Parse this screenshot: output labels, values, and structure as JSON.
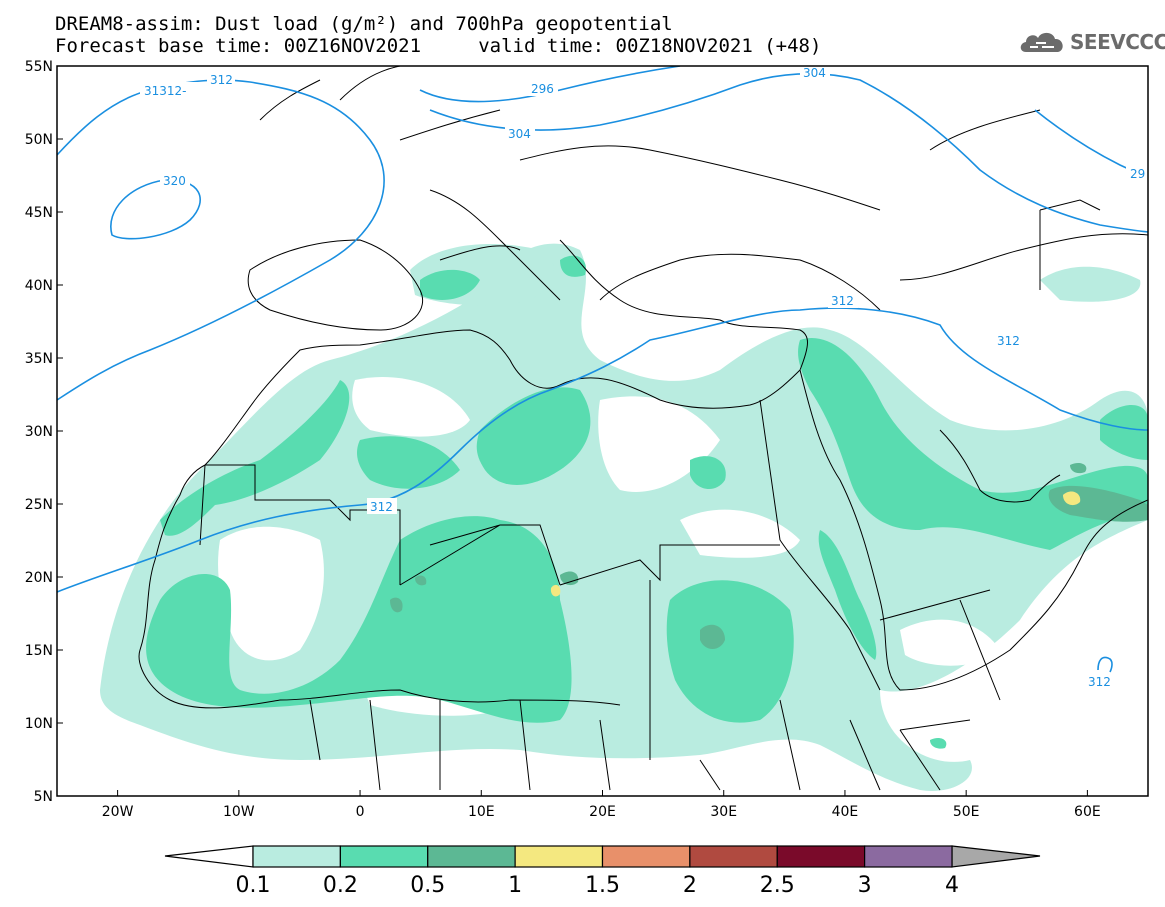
{
  "header": {
    "title_line1": "DREAM8-assim: Dust load (g/m²) and 700hPa geopotential",
    "title_line2": "Forecast base time: 00Z16NOV2021     valid time: 00Z18NOV2021 (+48)"
  },
  "logo": {
    "text": "SEEVCCC",
    "icon": "cloud-icon",
    "color": "#6b6b6b"
  },
  "map": {
    "lon_range": [
      -25,
      65
    ],
    "lat_range": [
      5,
      55
    ],
    "y_ticks": [
      "55N",
      "50N",
      "45N",
      "40N",
      "35N",
      "30N",
      "25N",
      "20N",
      "15N",
      "10N",
      "5N"
    ],
    "x_ticks": [
      "20W",
      "10W",
      "0",
      "10E",
      "20E",
      "30E",
      "40E",
      "50E",
      "60E"
    ],
    "contour_color": "#1a8fe0",
    "contour_labels": [
      "31312-",
      "312",
      "296",
      "304",
      "304",
      "29",
      "320",
      "312",
      "312",
      "312",
      "312"
    ]
  },
  "colorbar": {
    "labels": [
      "0.1",
      "0.2",
      "0.5",
      "1",
      "1.5",
      "2",
      "2.5",
      "3",
      "4"
    ],
    "colors": [
      "#b9ece0",
      "#59dcb0",
      "#5cb894",
      "#f4e880",
      "#e8906a",
      "#b04a40",
      "#7a0a2a",
      "#8b6aa0"
    ],
    "extend_low_color": "#ffffff",
    "extend_high_color": "#a8a8a8"
  }
}
